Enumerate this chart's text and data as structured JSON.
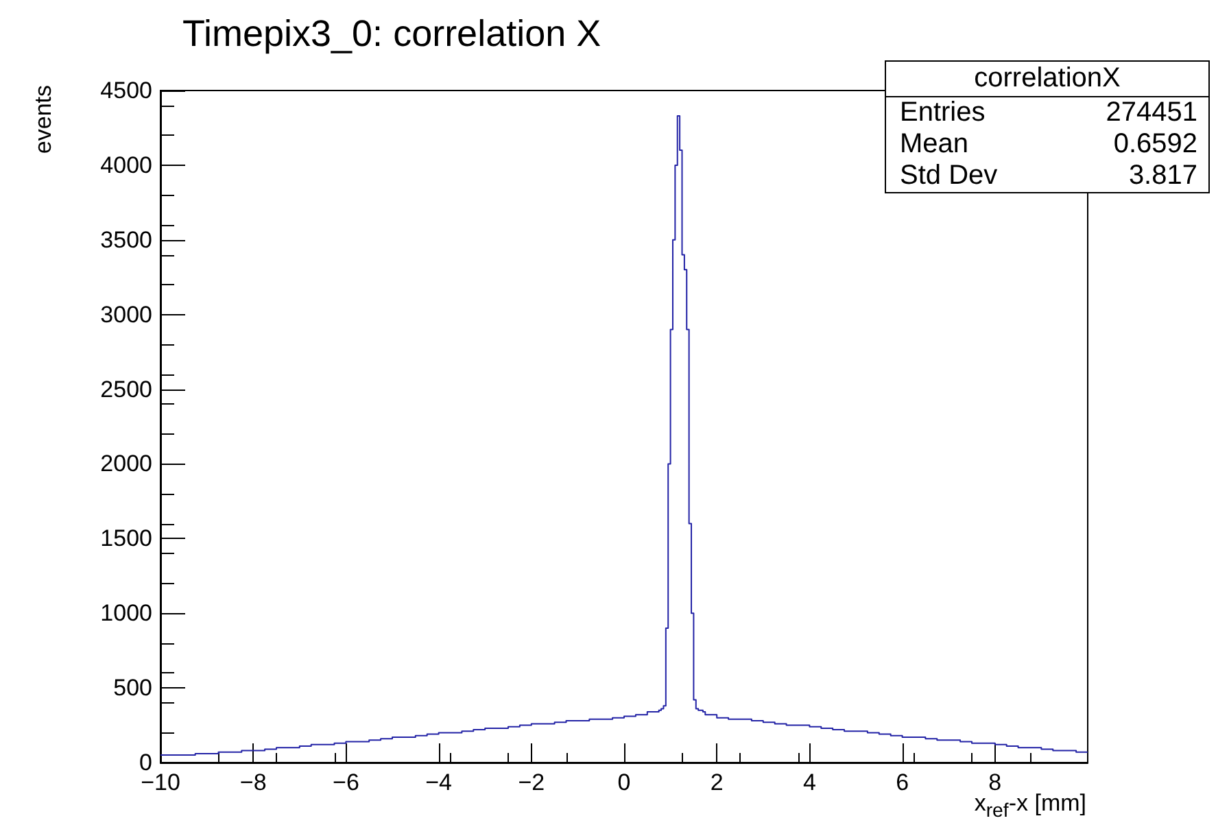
{
  "chart_data": {
    "type": "histogram",
    "title": "Timepix3_0: correlation X",
    "xlabel": "x$_{ref}$-x [mm]",
    "ylabel": "events",
    "annotations": [
      "correlationX",
      "Entries 274451",
      "Mean 0.6592",
      "Std Dev 3.817"
    ],
    "bins": [
      -10,
      -9.75,
      -9.5,
      -9.25,
      -9,
      -8.75,
      -8.5,
      -8.25,
      -8,
      -7.75,
      -7.5,
      -7.25,
      -7,
      -6.75,
      -6.5,
      -6.25,
      -6,
      -5.75,
      -5.5,
      -5.25,
      -5,
      -4.75,
      -4.5,
      -4.25,
      -4,
      -3.75,
      -3.5,
      -3.25,
      -3,
      -2.75,
      -2.5,
      -2.25,
      -2,
      -1.75,
      -1.5,
      -1.25,
      -1,
      -0.75,
      -0.5,
      -0.25,
      0,
      0.25,
      0.5,
      0.75,
      0.8,
      0.85,
      0.9,
      0.95,
      1,
      1.05,
      1.1,
      1.15,
      1.2,
      1.25,
      1.3,
      1.35,
      1.4,
      1.45,
      1.5,
      1.55,
      1.6,
      1.65,
      1.7,
      1.75,
      2,
      2.25,
      2.5,
      2.75,
      3,
      3.25,
      3.5,
      3.75,
      4,
      4.25,
      4.5,
      4.75,
      5,
      5.25,
      5.5,
      5.75,
      6,
      6.25,
      6.5,
      6.75,
      7,
      7.25,
      7.5,
      7.75,
      8,
      8.25,
      8.5,
      8.75,
      9,
      9.25,
      9.5,
      9.75,
      10
    ],
    "values": [
      50,
      50,
      50,
      60,
      60,
      70,
      70,
      80,
      80,
      90,
      100,
      100,
      110,
      120,
      120,
      130,
      140,
      140,
      150,
      160,
      170,
      170,
      180,
      190,
      200,
      200,
      210,
      220,
      230,
      230,
      240,
      250,
      260,
      260,
      270,
      280,
      280,
      290,
      290,
      300,
      310,
      320,
      340,
      350,
      360,
      380,
      900,
      2000,
      2900,
      3500,
      4000,
      4330,
      4100,
      3400,
      3300,
      2900,
      1600,
      1000,
      420,
      360,
      350,
      350,
      340,
      320,
      300,
      290,
      290,
      280,
      270,
      260,
      250,
      250,
      240,
      230,
      220,
      210,
      210,
      200,
      190,
      180,
      170,
      170,
      160,
      150,
      150,
      140,
      130,
      130,
      120,
      110,
      100,
      100,
      90,
      80,
      80,
      70
    ],
    "color": "#2323a6",
    "xlim": [
      -10,
      10
    ],
    "xticks": [
      -10,
      -8,
      -6,
      -4,
      -2,
      0,
      2,
      4,
      6,
      8
    ],
    "ylim": [
      0,
      4500
    ],
    "yticks": [
      0,
      500,
      1000,
      1500,
      2000,
      2500,
      3000,
      3500,
      4000,
      4500
    ],
    "grid": false
  }
}
